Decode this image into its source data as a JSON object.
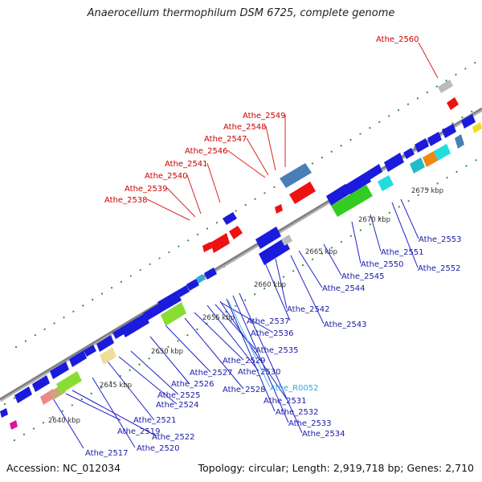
{
  "title": "Anaerocellum thermophilum DSM 6725, complete genome",
  "footer": {
    "accession": "Accession: NC_012034",
    "summary": "Topology: circular; Length: 2,919,718 bp; Genes: 2,710"
  },
  "colors": {
    "forward_label": "#cc0000",
    "reverse_label": "#1a1aaa",
    "rna_label": "#33aadd",
    "backbone": "#8c8c8c"
  },
  "kbp_ticks": [
    "2640 kbp",
    "2645 kbp",
    "2650 kbp",
    "2655 kbp",
    "2660 kbp",
    "2665 kbp",
    "2670 kbp",
    "2675 kbp"
  ],
  "top_labels": [
    "Athe_2538",
    "Athe_2539",
    "Athe_2540",
    "Athe_2541",
    "Athe_2546",
    "Athe_2547",
    "Athe_2548",
    "Athe_2549",
    "Athe_2560"
  ],
  "bottom_labels": [
    "Athe_2517",
    "Athe_2520",
    "Athe_2522",
    "Athe_2519",
    "Athe_2521",
    "Athe_2524",
    "Athe_2525",
    "Athe_2526",
    "Athe_2527",
    "Athe_2528",
    "Athe_2529",
    "Athe_2530",
    "Athe_R0052",
    "Athe_2531",
    "Athe_2532",
    "Athe_2533",
    "Athe_2534",
    "Athe_2535",
    "Athe_2536",
    "Athe_2537",
    "Athe_2542",
    "Athe_2543",
    "Athe_2544",
    "Athe_2545",
    "Athe_2550",
    "Athe_2551",
    "Athe_2552",
    "Athe_2553"
  ]
}
